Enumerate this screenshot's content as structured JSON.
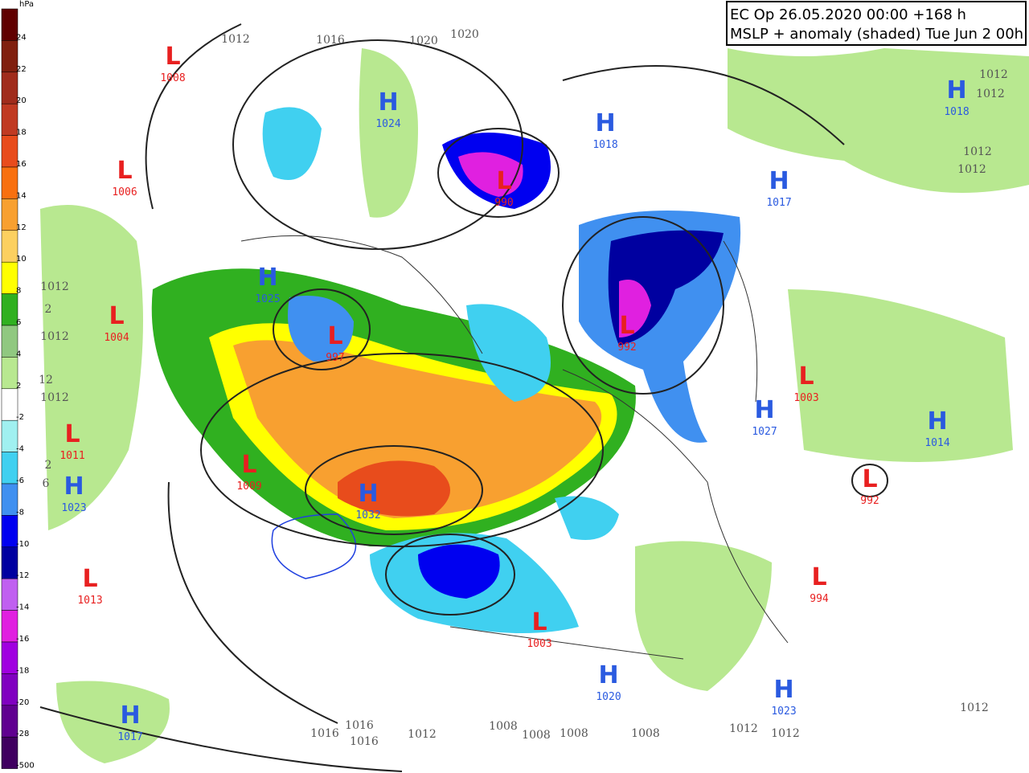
{
  "header": {
    "lines": [
      "EC Op 26.05.2020 00:00 +168 h",
      "MSLP + anomaly (shaded) Tue Jun 2 00h"
    ]
  },
  "legend": {
    "unit": "hPa",
    "labels": [
      "24",
      "22",
      "20",
      "18",
      "16",
      "14",
      "12",
      "10",
      "8",
      "6",
      "4",
      "2",
      "-2",
      "-4",
      "-6",
      "-8",
      "-10",
      "-12",
      "-14",
      "-16",
      "-18",
      "-20",
      "-28",
      "-500"
    ],
    "colors": [
      "#600000",
      "#80200f",
      "#a02c1c",
      "#c03a22",
      "#e84c1c",
      "#f87010",
      "#f8a030",
      "#fcd060",
      "#ffff00",
      "#30b020",
      "#90c880",
      "#b8e890",
      "#ffffff",
      "#a0f0f0",
      "#40d0f0",
      "#4090f0",
      "#0000f0",
      "#0000a0",
      "#c060f0",
      "#e020e0",
      "#a000e0",
      "#8000c0",
      "#600090",
      "#400060"
    ]
  },
  "systems": [
    {
      "type": "L",
      "value": "1008"
    },
    {
      "type": "L",
      "value": "1006"
    },
    {
      "type": "H",
      "value": "1024"
    },
    {
      "type": "L",
      "value": "990"
    },
    {
      "type": "H",
      "value": "1018"
    },
    {
      "type": "H",
      "value": "1017"
    },
    {
      "type": "H",
      "value": "1018"
    },
    {
      "type": "H",
      "value": "1025"
    },
    {
      "type": "L",
      "value": "1004"
    },
    {
      "type": "L",
      "value": "997"
    },
    {
      "type": "L",
      "value": "992"
    },
    {
      "type": "L",
      "value": "1003"
    },
    {
      "type": "H",
      "value": "1027"
    },
    {
      "type": "H",
      "value": "1014"
    },
    {
      "type": "L",
      "value": "1011"
    },
    {
      "type": "L",
      "value": "1009"
    },
    {
      "type": "H",
      "value": "1023"
    },
    {
      "type": "H",
      "value": "1032"
    },
    {
      "type": "L",
      "value": "992"
    },
    {
      "type": "L",
      "value": "994"
    },
    {
      "type": "L",
      "value": "1013"
    },
    {
      "type": "L",
      "value": "1003"
    },
    {
      "type": "H",
      "value": "1020"
    },
    {
      "type": "H",
      "value": "1023"
    },
    {
      "type": "H",
      "value": "1017"
    }
  ],
  "isobar_labels": [
    "1012",
    "1016",
    "1020",
    "1020",
    "1012",
    "1012",
    "1012",
    "1012",
    "1012",
    "2",
    "1012",
    "12",
    "1012",
    "2",
    "6",
    "1016",
    "1016",
    "1016",
    "1012",
    "1008",
    "1008",
    "1008",
    "1008",
    "1012",
    "1012",
    "1012"
  ]
}
